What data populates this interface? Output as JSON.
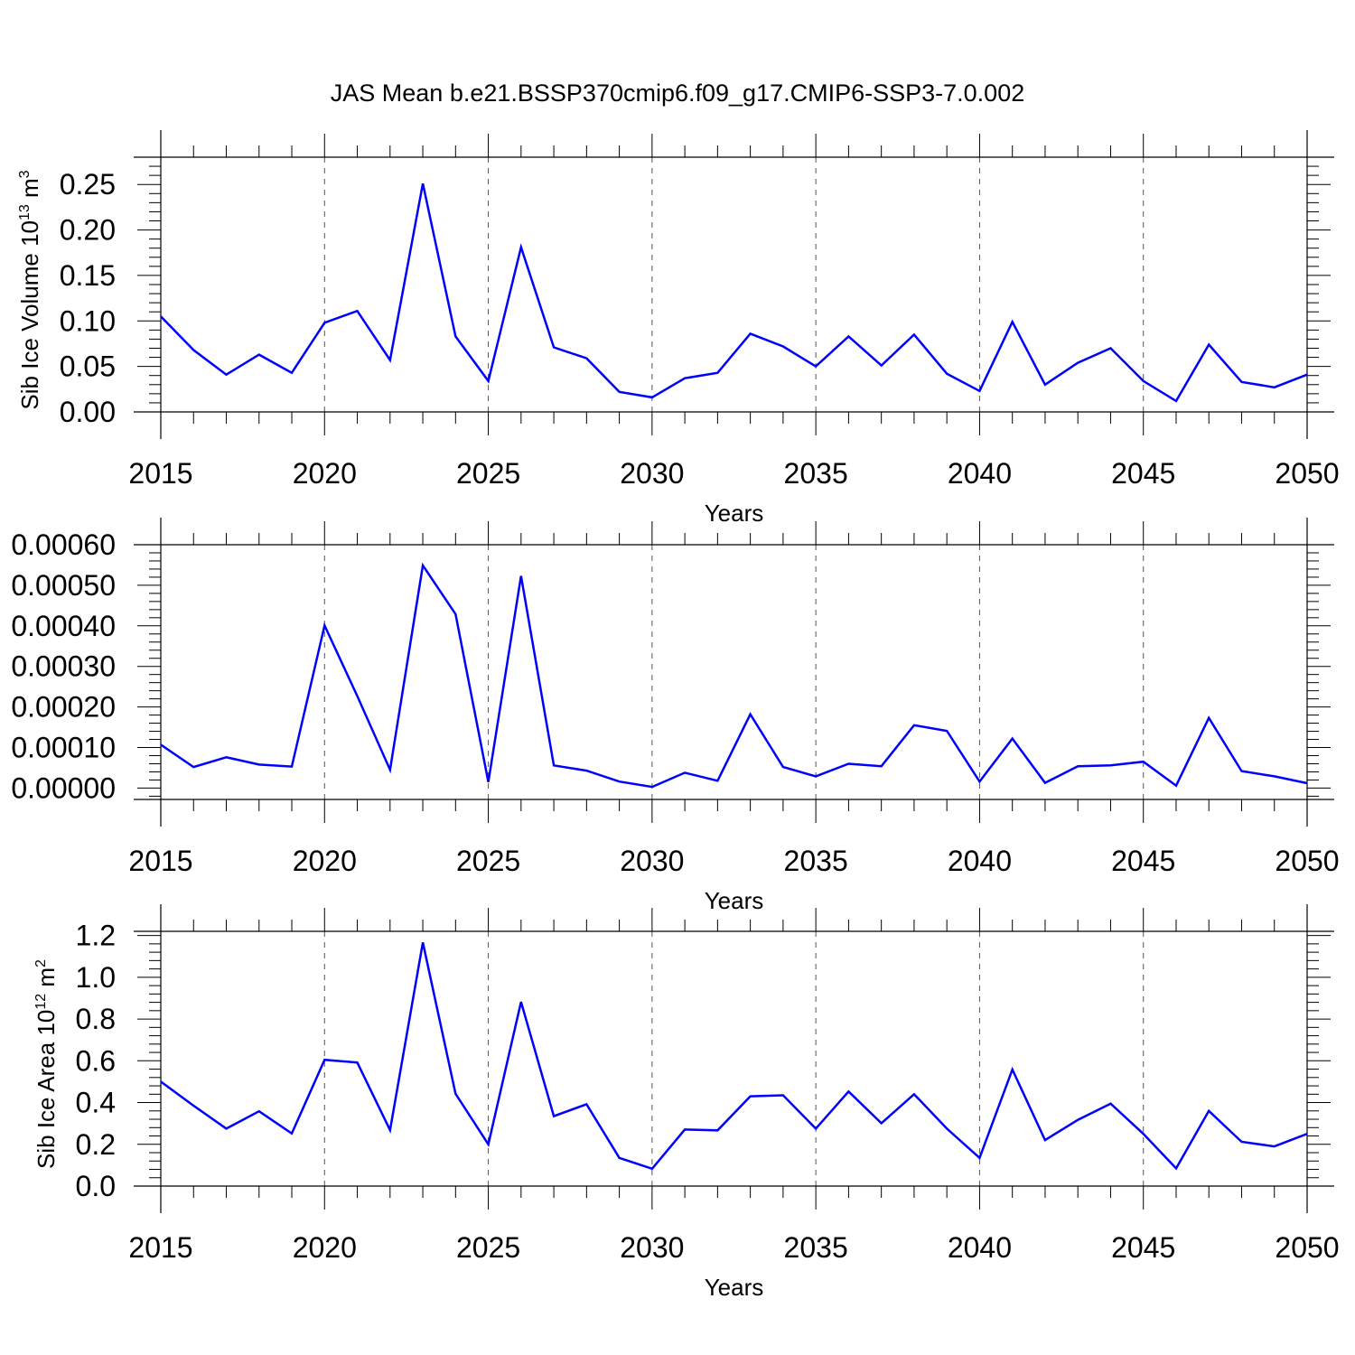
{
  "title": "JAS Mean b.e21.BSSP370cmip6.f09_g17.CMIP6-SSP3-7.0.002",
  "colors": {
    "line": "#0000ff",
    "axis": "#000000",
    "grid": "#555555"
  },
  "chart_data": [
    {
      "type": "line",
      "xlabel": "Years",
      "ylabel": "Sib Ice Volume 10",
      "ylabel_exp": "13",
      "ylabel_unit": " m",
      "ylabel_unit_exp": "3",
      "xlim": [
        2015,
        2050
      ],
      "ylim": [
        0,
        0.28
      ],
      "xticks": [
        2015,
        2020,
        2025,
        2030,
        2035,
        2040,
        2045,
        2050
      ],
      "xtick_labels": [
        "2015",
        "2020",
        "2025",
        "2030",
        "2035",
        "2040",
        "2045",
        "2050"
      ],
      "yticks": [
        0,
        0.05,
        0.1,
        0.15,
        0.2,
        0.25
      ],
      "ytick_labels": [
        "0.00",
        "0.05",
        "0.10",
        "0.15",
        "0.20",
        "0.25"
      ],
      "grid": "vertical dashed at major x ticks",
      "x": [
        2015,
        2016,
        2017,
        2018,
        2019,
        2020,
        2021,
        2022,
        2023,
        2024,
        2025,
        2026,
        2027,
        2028,
        2029,
        2030,
        2031,
        2032,
        2033,
        2034,
        2035,
        2036,
        2037,
        2038,
        2039,
        2040,
        2041,
        2042,
        2043,
        2044,
        2045,
        2046,
        2047,
        2048,
        2049,
        2050
      ],
      "values": [
        0.105,
        0.068,
        0.041,
        0.063,
        0.043,
        0.098,
        0.111,
        0.057,
        0.251,
        0.083,
        0.034,
        0.181,
        0.071,
        0.059,
        0.022,
        0.016,
        0.037,
        0.043,
        0.086,
        0.072,
        0.05,
        0.083,
        0.051,
        0.085,
        0.042,
        0.023,
        0.099,
        0.03,
        0.054,
        0.07,
        0.034,
        0.012,
        0.074,
        0.033,
        0.027,
        0.041
      ]
    },
    {
      "type": "line",
      "xlabel": "Years",
      "ylabel": "",
      "xlim": [
        2015,
        2050
      ],
      "ylim": [
        -2.8e-05,
        0.0006
      ],
      "xticks": [
        2015,
        2020,
        2025,
        2030,
        2035,
        2040,
        2045,
        2050
      ],
      "xtick_labels": [
        "2015",
        "2020",
        "2025",
        "2030",
        "2035",
        "2040",
        "2045",
        "2050"
      ],
      "yticks": [
        0,
        0.0001,
        0.0002,
        0.0003,
        0.0004,
        0.0005,
        0.0006
      ],
      "ytick_labels": [
        "0.00000",
        "0.00010",
        "0.00020",
        "0.00030",
        "0.00040",
        "0.00050",
        "0.00060"
      ],
      "grid": "vertical dashed at major x ticks",
      "x": [
        2015,
        2016,
        2017,
        2018,
        2019,
        2020,
        2021,
        2022,
        2023,
        2024,
        2025,
        2026,
        2027,
        2028,
        2029,
        2030,
        2031,
        2032,
        2033,
        2034,
        2035,
        2036,
        2037,
        2038,
        2039,
        2040,
        2041,
        2042,
        2043,
        2044,
        2045,
        2046,
        2047,
        2048,
        2049,
        2050
      ],
      "values": [
        0.000107,
        5.2e-05,
        7.6e-05,
        5.8e-05,
        5.3e-05,
        0.000401,
        0.000227,
        4.5e-05,
        0.000549,
        0.000429,
        1.5e-05,
        0.000523,
        5.6e-05,
        4.3e-05,
        1.6e-05,
        3e-06,
        3.8e-05,
        1.8e-05,
        0.000182,
        5.2e-05,
        2.9e-05,
        6e-05,
        5.4e-05,
        0.000155,
        0.000141,
        1.6e-05,
        0.000122,
        1.3e-05,
        5.4e-05,
        5.6e-05,
        6.5e-05,
        6e-06,
        0.000173,
        4.2e-05,
        2.9e-05,
        1.2e-05
      ]
    },
    {
      "type": "line",
      "xlabel": "Years",
      "ylabel": "Sib Ice Area 10",
      "ylabel_exp": "12",
      "ylabel_unit": " m",
      "ylabel_unit_exp": "2",
      "xlim": [
        2015,
        2050
      ],
      "ylim": [
        0,
        1.22
      ],
      "xticks": [
        2015,
        2020,
        2025,
        2030,
        2035,
        2040,
        2045,
        2050
      ],
      "xtick_labels": [
        "2015",
        "2020",
        "2025",
        "2030",
        "2035",
        "2040",
        "2045",
        "2050"
      ],
      "yticks": [
        0,
        0.2,
        0.4,
        0.6,
        0.8,
        1.0,
        1.2
      ],
      "ytick_labels": [
        "0.0",
        "0.2",
        "0.4",
        "0.6",
        "0.8",
        "1.0",
        "1.2"
      ],
      "grid": "vertical dashed at major x ticks",
      "x": [
        2015,
        2016,
        2017,
        2018,
        2019,
        2020,
        2021,
        2022,
        2023,
        2024,
        2025,
        2026,
        2027,
        2028,
        2029,
        2030,
        2031,
        2032,
        2033,
        2034,
        2035,
        2036,
        2037,
        2038,
        2039,
        2040,
        2041,
        2042,
        2043,
        2044,
        2045,
        2046,
        2047,
        2048,
        2049,
        2050
      ],
      "values": [
        0.5,
        0.385,
        0.275,
        0.358,
        0.252,
        0.605,
        0.592,
        0.268,
        1.167,
        0.442,
        0.2,
        0.882,
        0.335,
        0.392,
        0.135,
        0.083,
        0.271,
        0.267,
        0.43,
        0.435,
        0.275,
        0.453,
        0.301,
        0.44,
        0.275,
        0.135,
        0.558,
        0.22,
        0.317,
        0.395,
        0.25,
        0.085,
        0.36,
        0.212,
        0.19,
        0.25
      ]
    }
  ]
}
